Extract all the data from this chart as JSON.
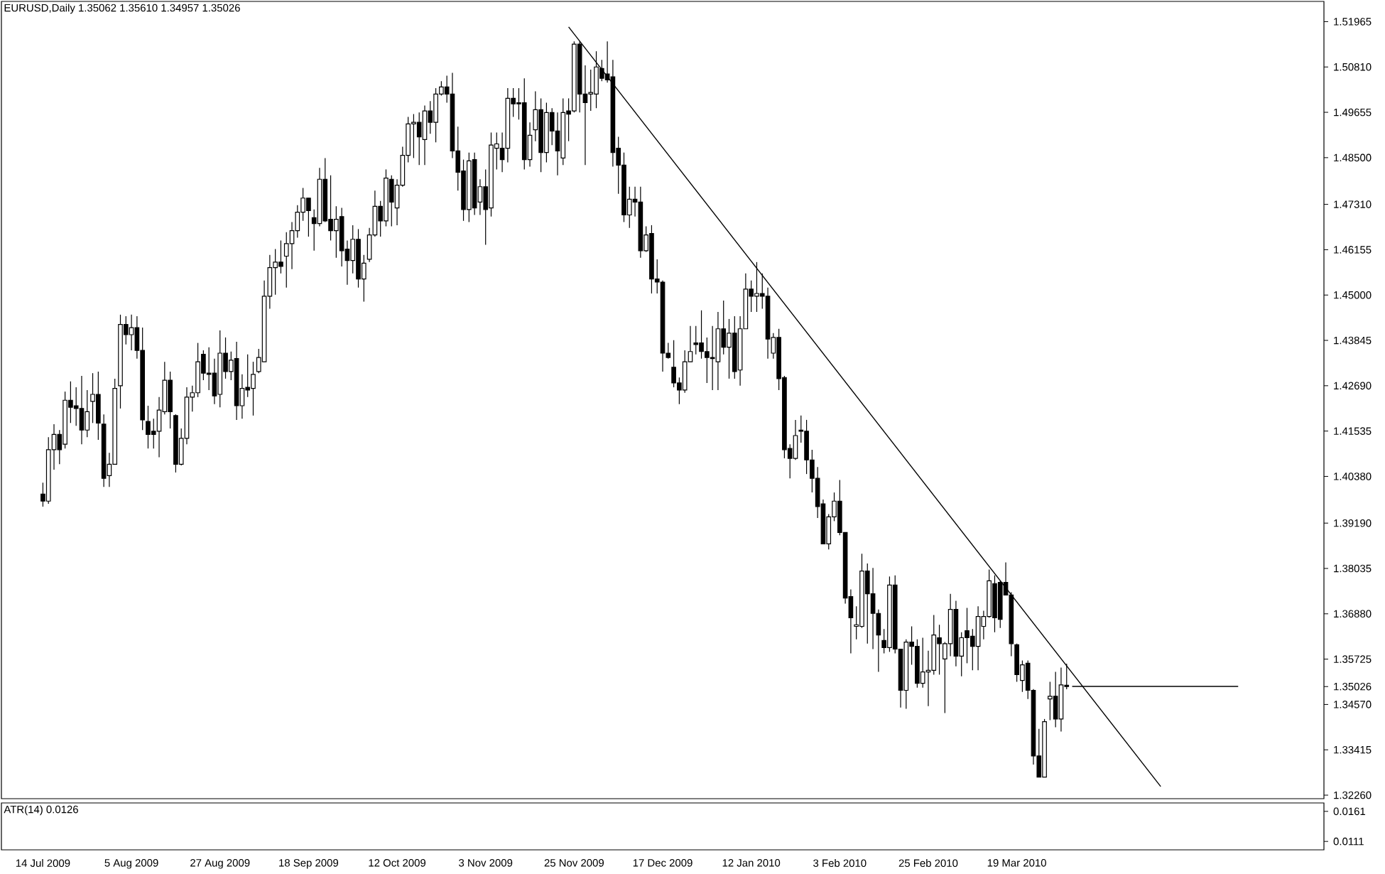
{
  "chart_data": [
    {
      "type": "candlestick",
      "title": "EURUSD,Daily  1.35062 1.35610 1.34957 1.35026",
      "color": "#000000",
      "categories": [
        "14 Jul 2009",
        null,
        null,
        null,
        null,
        null,
        null,
        null,
        null,
        null,
        null,
        null,
        null,
        null,
        null,
        null,
        "5 Aug 2009",
        null,
        null,
        null,
        null,
        null,
        null,
        null,
        null,
        null,
        null,
        null,
        null,
        null,
        null,
        null,
        "27 Aug 2009",
        null,
        null,
        null,
        null,
        null,
        null,
        null,
        null,
        null,
        null,
        null,
        null,
        null,
        null,
        null,
        "18 Sep 2009",
        null,
        null,
        null,
        null,
        null,
        null,
        null,
        null,
        null,
        null,
        null,
        null,
        null,
        null,
        null,
        "12 Oct 2009",
        null,
        null,
        null,
        null,
        null,
        null,
        null,
        null,
        null,
        null,
        null,
        null,
        null,
        null,
        null,
        "3 Nov 2009",
        null,
        null,
        null,
        null,
        null,
        null,
        null,
        null,
        null,
        null,
        null,
        null,
        null,
        null,
        null,
        "25 Nov 2009",
        null,
        null,
        null,
        null,
        null,
        null,
        null,
        null,
        null,
        null,
        null,
        null,
        null,
        null,
        null,
        "17 Dec 2009",
        null,
        null,
        null,
        null,
        null,
        null,
        null,
        null,
        null,
        null,
        null,
        null,
        null,
        null,
        null,
        "12 Jan 2010",
        null,
        null,
        null,
        null,
        null,
        null,
        null,
        null,
        null,
        null,
        null,
        null,
        null,
        null,
        null,
        "3 Feb 2010",
        null,
        null,
        null,
        null,
        null,
        null,
        null,
        null,
        null,
        null,
        null,
        null,
        null,
        null,
        null,
        "25 Feb 2010",
        null,
        null,
        null,
        null,
        null,
        null,
        null,
        null,
        null,
        null,
        null,
        null,
        null,
        null,
        null,
        "19 Mar 2010",
        null,
        null,
        null,
        null,
        null,
        null,
        null,
        null,
        null,
        null,
        null,
        null,
        null,
        null,
        null,
        null,
        null,
        null,
        null,
        null,
        null,
        null,
        null,
        null,
        null,
        null,
        null,
        null,
        null,
        null,
        null,
        null,
        null,
        null,
        null,
        null,
        null,
        null,
        null,
        null,
        null,
        null,
        null,
        null,
        null,
        null,
        null,
        null,
        null,
        null,
        null,
        null,
        null,
        null,
        null
      ],
      "ohlc": [
        [
          1.3993,
          1.4022,
          1.3961,
          1.3975
        ],
        [
          1.3975,
          1.4138,
          1.3968,
          1.4106
        ],
        [
          1.4106,
          1.4171,
          1.4055,
          1.4145
        ],
        [
          1.4145,
          1.4156,
          1.4069,
          1.4106
        ],
        [
          1.412,
          1.4254,
          1.4109,
          1.4232
        ],
        [
          1.4232,
          1.428,
          1.4174,
          1.4214
        ],
        [
          1.4218,
          1.4265,
          1.4167,
          1.4211
        ],
        [
          1.4211,
          1.4294,
          1.412,
          1.4156
        ],
        [
          1.4156,
          1.4258,
          1.4138,
          1.4203
        ],
        [
          1.4229,
          1.4301,
          1.4174,
          1.4247
        ],
        [
          1.4247,
          1.4305,
          1.4131,
          1.4174
        ],
        [
          1.4171,
          1.4196,
          1.4011,
          1.4033
        ],
        [
          1.404,
          1.4098,
          1.4011,
          1.4069
        ],
        [
          1.4069,
          1.4287,
          1.4069,
          1.4262
        ],
        [
          1.4269,
          1.445,
          1.4211,
          1.4425
        ],
        [
          1.4425,
          1.4446,
          1.4374,
          1.4399
        ],
        [
          1.4399,
          1.445,
          1.4359,
          1.4417
        ],
        [
          1.4417,
          1.4446,
          1.4338,
          1.4359
        ],
        [
          1.4359,
          1.4417,
          1.4156,
          1.4182
        ],
        [
          1.4178,
          1.4218,
          1.4109,
          1.4145
        ],
        [
          1.4153,
          1.4185,
          1.4109,
          1.4145
        ],
        [
          1.4153,
          1.424,
          1.4087,
          1.4207
        ],
        [
          1.4203,
          1.433,
          1.4196,
          1.4283
        ],
        [
          1.4283,
          1.4305,
          1.416,
          1.4203
        ],
        [
          1.4193,
          1.4196,
          1.4048,
          1.4069
        ],
        [
          1.4069,
          1.416,
          1.4066,
          1.4135
        ],
        [
          1.4135,
          1.4265,
          1.412,
          1.424
        ],
        [
          1.424,
          1.4269,
          1.4203,
          1.4251
        ],
        [
          1.4251,
          1.4378,
          1.424,
          1.433
        ],
        [
          1.4349,
          1.4359,
          1.4283,
          1.4301
        ],
        [
          1.4301,
          1.4367,
          1.4258,
          1.4298
        ],
        [
          1.4301,
          1.4338,
          1.4222,
          1.4243
        ],
        [
          1.4247,
          1.441,
          1.4214,
          1.4352
        ],
        [
          1.4352,
          1.4392,
          1.4287,
          1.4305
        ],
        [
          1.4305,
          1.4356,
          1.4283,
          1.4334
        ],
        [
          1.4338,
          1.4381,
          1.4182,
          1.4218
        ],
        [
          1.4218,
          1.4298,
          1.4185,
          1.4262
        ],
        [
          1.4265,
          1.4349,
          1.424,
          1.4258
        ],
        [
          1.4262,
          1.433,
          1.4193,
          1.4298
        ],
        [
          1.4305,
          1.4363,
          1.4301,
          1.4341
        ],
        [
          1.433,
          1.4537,
          1.433,
          1.4497
        ],
        [
          1.4497,
          1.4602,
          1.4465,
          1.457
        ],
        [
          1.457,
          1.4617,
          1.4501,
          1.4584
        ],
        [
          1.4584,
          1.4639,
          1.4555,
          1.4573
        ],
        [
          1.4599,
          1.466,
          1.4519,
          1.4631
        ],
        [
          1.4631,
          1.4686,
          1.4566,
          1.4664
        ],
        [
          1.4664,
          1.4729,
          1.4646,
          1.4711
        ],
        [
          1.4711,
          1.4773,
          1.4689,
          1.4747
        ],
        [
          1.4747,
          1.4747,
          1.4649,
          1.4715
        ],
        [
          1.4697,
          1.4718,
          1.4613,
          1.4682
        ],
        [
          1.4682,
          1.4824,
          1.4675,
          1.4795
        ],
        [
          1.4795,
          1.4849,
          1.4686,
          1.4689
        ],
        [
          1.4693,
          1.4805,
          1.4639,
          1.4664
        ],
        [
          1.4664,
          1.4726,
          1.4595,
          1.4693
        ],
        [
          1.47,
          1.4722,
          1.4573,
          1.4613
        ],
        [
          1.4617,
          1.4639,
          1.4526,
          1.4588
        ],
        [
          1.4588,
          1.4678,
          1.4555,
          1.4642
        ],
        [
          1.4642,
          1.4668,
          1.4519,
          1.4541
        ],
        [
          1.4541,
          1.4602,
          1.4483,
          1.4581
        ],
        [
          1.4591,
          1.4671,
          1.4584,
          1.4653
        ],
        [
          1.4653,
          1.4766,
          1.4649,
          1.4726
        ],
        [
          1.4726,
          1.474,
          1.4649,
          1.4689
        ],
        [
          1.4689,
          1.482,
          1.4675,
          1.4798
        ],
        [
          1.4795,
          1.4805,
          1.4675,
          1.4737
        ],
        [
          1.4722,
          1.4795,
          1.4678,
          1.478
        ],
        [
          1.478,
          1.4878,
          1.4776,
          1.4856
        ],
        [
          1.4856,
          1.4954,
          1.4838,
          1.4936
        ],
        [
          1.4936,
          1.4961,
          1.4849,
          1.494
        ],
        [
          1.494,
          1.4965,
          1.4831,
          1.4903
        ],
        [
          1.4896,
          1.4983,
          1.4831,
          1.4969
        ],
        [
          1.4969,
          1.4994,
          1.4911,
          1.494
        ],
        [
          1.494,
          1.5027,
          1.4889,
          1.5012
        ],
        [
          1.5012,
          1.5045,
          1.5008,
          1.503
        ],
        [
          1.503,
          1.5059,
          1.499,
          1.5012
        ],
        [
          1.5012,
          1.5066,
          1.4849,
          1.4867
        ],
        [
          1.4867,
          1.4929,
          1.4766,
          1.4813
        ],
        [
          1.4816,
          1.4845,
          1.4689,
          1.4718
        ],
        [
          1.4718,
          1.4863,
          1.4686,
          1.4842
        ],
        [
          1.4845,
          1.4863,
          1.4704,
          1.4722
        ],
        [
          1.4737,
          1.4795,
          1.4704,
          1.4776
        ],
        [
          1.4776,
          1.482,
          1.4628,
          1.4718
        ],
        [
          1.4722,
          1.4914,
          1.47,
          1.4882
        ],
        [
          1.4874,
          1.4914,
          1.482,
          1.4885
        ],
        [
          1.4874,
          1.4914,
          1.4813,
          1.4845
        ],
        [
          1.4874,
          1.5027,
          1.4838,
          1.5001
        ],
        [
          1.5001,
          1.5027,
          1.4954,
          1.4987
        ],
        [
          1.499,
          1.5027,
          1.4947,
          1.4987
        ],
        [
          1.499,
          1.5052,
          1.482,
          1.4845
        ],
        [
          1.4845,
          1.494,
          1.4827,
          1.4907
        ],
        [
          1.4921,
          1.5019,
          1.4892,
          1.4972
        ],
        [
          1.4972,
          1.5001,
          1.4813,
          1.4863
        ],
        [
          1.4863,
          1.499,
          1.4838,
          1.4965
        ],
        [
          1.4965,
          1.4976,
          1.4882,
          1.4918
        ],
        [
          1.4918,
          1.4965,
          1.4805,
          1.4867
        ],
        [
          1.4849,
          1.5001,
          1.4831,
          1.4965
        ],
        [
          1.4969,
          1.5001,
          1.4892,
          1.4961
        ],
        [
          1.4969,
          1.5146,
          1.4965,
          1.5139
        ],
        [
          1.5139,
          1.5146,
          1.4965,
          1.5012
        ],
        [
          1.5012,
          1.5085,
          1.4831,
          1.499
        ],
        [
          1.5012,
          1.5074,
          1.4969,
          1.5016
        ],
        [
          1.5012,
          1.5121,
          1.4976,
          1.5081
        ],
        [
          1.5077,
          1.5099,
          1.5045,
          1.5052
        ],
        [
          1.5063,
          1.5146,
          1.5041,
          1.5048
        ],
        [
          1.5056,
          1.5099,
          1.4827,
          1.4863
        ],
        [
          1.4874,
          1.4903,
          1.4758,
          1.4831
        ],
        [
          1.4831,
          1.4863,
          1.4686,
          1.4704
        ],
        [
          1.4704,
          1.4776,
          1.4671,
          1.4744
        ],
        [
          1.4744,
          1.4776,
          1.47,
          1.4737
        ],
        [
          1.4737,
          1.4776,
          1.4595,
          1.4613
        ],
        [
          1.4613,
          1.4675,
          1.461,
          1.4653
        ],
        [
          1.4657,
          1.4678,
          1.4504,
          1.4541
        ],
        [
          1.4541,
          1.4591,
          1.4504,
          1.4533
        ],
        [
          1.4533,
          1.4537,
          1.4305,
          1.4352
        ],
        [
          1.4352,
          1.4378,
          1.4338,
          1.4341
        ],
        [
          1.4316,
          1.4385,
          1.4265,
          1.4276
        ],
        [
          1.4276,
          1.429,
          1.4222,
          1.4258
        ],
        [
          1.4258,
          1.4359,
          1.4251,
          1.433
        ],
        [
          1.433,
          1.4421,
          1.433,
          1.4356
        ],
        [
          1.4378,
          1.4421,
          1.4349,
          1.4374
        ],
        [
          1.4378,
          1.4461,
          1.4338,
          1.4356
        ],
        [
          1.4356,
          1.4392,
          1.4276,
          1.4341
        ],
        [
          1.4341,
          1.4421,
          1.4258,
          1.4338
        ],
        [
          1.433,
          1.4457,
          1.4258,
          1.4414
        ],
        [
          1.4414,
          1.4486,
          1.4349,
          1.4367
        ],
        [
          1.4367,
          1.4439,
          1.4287,
          1.4403
        ],
        [
          1.4403,
          1.4446,
          1.4287,
          1.4305
        ],
        [
          1.4309,
          1.4446,
          1.4269,
          1.4414
        ],
        [
          1.4414,
          1.4555,
          1.4414,
          1.4515
        ],
        [
          1.4515,
          1.4537,
          1.4457,
          1.4497
        ],
        [
          1.4497,
          1.4584,
          1.4457,
          1.4504
        ],
        [
          1.4504,
          1.4555,
          1.4465,
          1.4497
        ],
        [
          1.4497,
          1.4519,
          1.4338,
          1.4388
        ],
        [
          1.4352,
          1.4403,
          1.4338,
          1.4392
        ],
        [
          1.4392,
          1.4414,
          1.4258,
          1.4287
        ],
        [
          1.429,
          1.4294,
          1.4084,
          1.4106
        ],
        [
          1.4109,
          1.412,
          1.4033,
          1.4084
        ],
        [
          1.4084,
          1.4182,
          1.408,
          1.4142
        ],
        [
          1.4156,
          1.4193,
          1.4124,
          1.4153
        ],
        [
          1.4153,
          1.4182,
          1.4044,
          1.408
        ],
        [
          1.408,
          1.4106,
          1.3997,
          1.4033
        ],
        [
          1.4033,
          1.4062,
          1.3932,
          1.3961
        ],
        [
          1.3968,
          1.3979,
          1.3866,
          1.3866
        ],
        [
          1.3866,
          1.3942,
          1.3852,
          1.3935
        ],
        [
          1.3935,
          1.3997,
          1.3924,
          1.3975
        ],
        [
          1.3975,
          1.4029,
          1.3888,
          1.3895
        ],
        [
          1.3895,
          1.3895,
          1.3714,
          1.3728
        ],
        [
          1.3732,
          1.375,
          1.3587,
          1.3678
        ],
        [
          1.3656,
          1.3707,
          1.3623,
          1.366
        ],
        [
          1.3656,
          1.3841,
          1.3652,
          1.3797
        ],
        [
          1.3797,
          1.3816,
          1.3612,
          1.3739
        ],
        [
          1.3739,
          1.3805,
          1.3598,
          1.3689
        ],
        [
          1.3689,
          1.3699,
          1.354,
          1.3634
        ],
        [
          1.362,
          1.3649,
          1.3587,
          1.3602
        ],
        [
          1.3602,
          1.3783,
          1.3591,
          1.3761
        ],
        [
          1.3761,
          1.3786,
          1.3587,
          1.3598
        ],
        [
          1.3598,
          1.3598,
          1.3449,
          1.3493
        ],
        [
          1.3493,
          1.3623,
          1.3446,
          1.3616
        ],
        [
          1.3616,
          1.3656,
          1.3558,
          1.3605
        ],
        [
          1.3605,
          1.3623,
          1.35,
          1.3511
        ],
        [
          1.3511,
          1.3627,
          1.35,
          1.354
        ],
        [
          1.354,
          1.3594,
          1.3453,
          1.3544
        ],
        [
          1.3544,
          1.3685,
          1.3533,
          1.3634
        ],
        [
          1.3627,
          1.366,
          1.3533,
          1.3612
        ],
        [
          1.3573,
          1.3616,
          1.3435,
          1.3612
        ],
        [
          1.3612,
          1.3739,
          1.358,
          1.3699
        ],
        [
          1.3699,
          1.3721,
          1.3554,
          1.358
        ],
        [
          1.358,
          1.3641,
          1.3529,
          1.3627
        ],
        [
          1.3645,
          1.3703,
          1.3562,
          1.3627
        ],
        [
          1.3631,
          1.3649,
          1.3544,
          1.3605
        ],
        [
          1.3605,
          1.3707,
          1.3544,
          1.3681
        ],
        [
          1.3656,
          1.3696,
          1.3623,
          1.3681
        ],
        [
          1.3681,
          1.3801,
          1.3678,
          1.3772
        ],
        [
          1.3765,
          1.3786,
          1.3641,
          1.3678
        ],
        [
          1.3768,
          1.3772,
          1.3652,
          1.3674
        ],
        [
          1.3768,
          1.3819,
          1.3736,
          1.3736
        ],
        [
          1.3736,
          1.3743,
          1.358,
          1.3612
        ],
        [
          1.3609,
          1.3612,
          1.3515,
          1.3533
        ],
        [
          1.3518,
          1.3569,
          1.3489,
          1.3558
        ],
        [
          1.3562,
          1.3569,
          1.3471,
          1.3493
        ],
        [
          1.3493,
          1.3496,
          1.3304,
          1.3326
        ],
        [
          1.3326,
          1.3395,
          1.3272,
          1.3272
        ],
        [
          1.3272,
          1.342,
          1.3272,
          1.3413
        ],
        [
          1.3471,
          1.3515,
          1.3417,
          1.3478
        ],
        [
          1.3478,
          1.354,
          1.3399,
          1.342
        ],
        [
          1.342,
          1.3551,
          1.3388,
          1.3507
        ],
        [
          1.35062,
          1.3561,
          1.34957,
          1.35026
        ],
        null,
        null,
        null,
        null,
        null,
        null,
        null,
        null,
        null,
        null,
        null,
        null,
        null,
        null,
        null,
        null,
        null,
        null,
        null,
        null,
        null,
        null,
        null,
        null,
        null,
        null,
        null,
        null,
        null,
        null,
        null,
        null,
        null,
        null,
        null,
        null,
        null,
        null,
        null,
        null,
        null,
        null,
        null,
        null,
        null,
        null
      ],
      "series": [
        {
          "type": "line",
          "color": "#000000",
          "values": [
            null,
            null,
            null,
            null,
            null,
            null,
            null,
            null,
            null,
            null,
            null,
            null,
            null,
            null,
            null,
            null,
            null,
            null,
            null,
            null,
            null,
            null,
            null,
            null,
            null,
            null,
            null,
            null,
            null,
            null,
            null,
            null,
            null,
            null,
            null,
            null,
            null,
            null,
            null,
            null,
            null,
            null,
            null,
            null,
            null,
            null,
            null,
            null,
            null,
            null,
            null,
            null,
            null,
            null,
            null,
            null,
            null,
            null,
            null,
            null,
            null,
            null,
            null,
            null,
            null,
            null,
            null,
            null,
            null,
            null,
            null,
            null,
            null,
            null,
            null,
            null,
            null,
            null,
            null,
            null,
            null,
            null,
            null,
            null,
            null,
            null,
            null,
            null,
            null,
            null,
            null,
            null,
            null,
            null,
            null,
            1.5183,
            null,
            null,
            null,
            null,
            null,
            null,
            null,
            null,
            null,
            null,
            null,
            null,
            null,
            null,
            null,
            null,
            null,
            null,
            null,
            null,
            null,
            null,
            null,
            null,
            null,
            null,
            null,
            null,
            null,
            null,
            null,
            null,
            null,
            null,
            null,
            null,
            null,
            null,
            null,
            null,
            null,
            null,
            null,
            null,
            null,
            null,
            null,
            null,
            null,
            null,
            null,
            null,
            null,
            null,
            null,
            null,
            null,
            null,
            null,
            null,
            null,
            null,
            null,
            null,
            null,
            null,
            null,
            null,
            null,
            null,
            null,
            null,
            null,
            null,
            null,
            null,
            null,
            null,
            null,
            null,
            null,
            null,
            null,
            null,
            null,
            null,
            null,
            null,
            null,
            null,
            null,
            null,
            null,
            null,
            null,
            null,
            null,
            null,
            null,
            null,
            null,
            null,
            null,
            null,
            null,
            null,
            1.3248,
            null,
            null,
            null,
            null,
            null,
            null,
            null,
            null,
            null,
            null,
            null,
            null,
            null,
            null,
            null,
            null,
            null,
            null,
            null,
            null,
            null,
            null,
            null,
            null,
            null,
            null,
            null,
            null,
            null
          ]
        },
        {
          "type": "line",
          "color": "#000000",
          "values": [
            null,
            null,
            null,
            null,
            null,
            null,
            null,
            null,
            null,
            null,
            null,
            null,
            null,
            null,
            null,
            null,
            null,
            null,
            null,
            null,
            null,
            null,
            null,
            null,
            null,
            null,
            null,
            null,
            null,
            null,
            null,
            null,
            null,
            null,
            null,
            null,
            null,
            null,
            null,
            null,
            null,
            null,
            null,
            null,
            null,
            null,
            null,
            null,
            null,
            null,
            null,
            null,
            null,
            null,
            null,
            null,
            null,
            null,
            null,
            null,
            null,
            null,
            null,
            null,
            null,
            null,
            null,
            null,
            null,
            null,
            null,
            null,
            null,
            null,
            null,
            null,
            null,
            null,
            null,
            null,
            null,
            null,
            null,
            null,
            null,
            null,
            null,
            null,
            null,
            null,
            null,
            null,
            null,
            null,
            null,
            null,
            null,
            null,
            null,
            null,
            null,
            null,
            null,
            null,
            null,
            null,
            null,
            null,
            null,
            null,
            null,
            null,
            null,
            null,
            null,
            null,
            null,
            null,
            null,
            null,
            null,
            null,
            null,
            null,
            null,
            null,
            null,
            null,
            null,
            null,
            null,
            null,
            null,
            null,
            null,
            null,
            null,
            null,
            null,
            null,
            null,
            null,
            null,
            null,
            null,
            null,
            null,
            null,
            null,
            null,
            null,
            null,
            null,
            null,
            null,
            null,
            null,
            null,
            null,
            null,
            null,
            null,
            null,
            null,
            null,
            null,
            null,
            null,
            null,
            null,
            null,
            null,
            null,
            null,
            null,
            null,
            null,
            null,
            null,
            null,
            null,
            null,
            null,
            null,
            null,
            null,
            1.3503,
            null,
            null,
            null,
            null,
            null,
            null,
            null,
            null,
            null,
            null,
            null,
            null,
            null,
            null,
            null,
            null,
            null,
            null,
            null,
            null,
            null,
            null,
            null,
            null,
            null,
            null,
            null,
            null,
            null,
            1.3503,
            null,
            null,
            null,
            null,
            null,
            null,
            null,
            null,
            null,
            null,
            null,
            null,
            null,
            null,
            null
          ]
        }
      ],
      "ylim": [
        1.3217,
        1.5248
      ],
      "yticks": [
        1.51965,
        {
          "value": 1.5081,
          "label": "1.50810"
        },
        1.49655,
        {
          "value": 1.485,
          "label": "1.48500"
        },
        {
          "value": 1.4731,
          "label": "1.47310"
        },
        1.46155,
        {
          "value": 1.45,
          "label": "1.45000"
        },
        1.43845,
        {
          "value": 1.4269,
          "label": "1.42690"
        },
        1.41535,
        {
          "value": 1.4038,
          "label": "1.40380"
        },
        {
          "value": 1.3919,
          "label": "1.39190"
        },
        1.38035,
        {
          "value": 1.3688,
          "label": "1.36880"
        },
        1.35725,
        1.35026,
        {
          "value": 1.3457,
          "label": "1.34570"
        },
        1.33415,
        {
          "value": 1.3226,
          "label": "1.32260"
        }
      ]
    },
    {
      "type": "line",
      "title": "ATR(14) 0.0126",
      "categories": [
        null,
        null,
        null,
        null,
        null,
        null,
        null,
        null,
        null,
        null,
        null,
        null,
        null,
        null,
        null,
        null,
        null,
        null,
        null,
        null,
        null,
        null,
        null,
        null,
        null,
        null,
        null,
        null,
        null,
        null,
        null,
        null,
        null,
        null,
        null,
        null,
        null,
        null,
        null,
        null,
        null,
        null,
        null,
        null,
        null,
        null,
        null,
        null,
        null,
        null,
        null,
        null,
        null,
        null,
        null,
        null,
        null,
        null,
        null,
        null,
        null,
        null,
        null,
        null,
        null,
        null,
        null,
        null,
        null,
        null,
        null,
        null,
        null,
        null,
        null,
        null,
        null,
        null,
        null,
        null,
        null,
        null,
        null,
        null,
        null,
        null,
        null,
        null,
        null,
        null,
        null,
        null,
        null,
        null,
        null,
        null,
        null,
        null,
        null,
        null,
        null,
        null,
        null,
        null,
        null,
        null,
        null,
        null,
        null,
        null,
        null,
        null,
        null,
        null,
        null,
        null,
        null,
        null,
        null,
        null,
        null,
        null,
        null,
        null,
        null,
        null,
        null,
        null,
        null,
        null,
        null,
        null,
        null,
        null,
        null,
        null,
        null,
        null,
        null,
        null,
        null,
        null,
        null,
        null,
        null,
        null,
        null,
        null,
        null,
        null,
        null,
        null,
        null,
        null,
        null,
        null,
        null,
        null,
        null,
        null,
        null,
        null,
        null,
        null,
        null,
        null,
        null,
        null,
        null,
        null,
        null,
        null,
        null,
        null,
        null,
        null,
        null,
        null,
        null,
        null,
        null,
        null,
        null,
        null,
        null,
        null,
        null,
        null,
        null,
        null,
        null,
        null,
        null,
        null,
        null,
        null,
        null,
        null,
        null,
        null,
        null,
        null,
        null,
        null,
        null,
        null,
        null,
        null,
        null,
        null,
        null,
        null,
        null,
        null,
        null,
        null,
        null,
        null,
        null,
        null,
        null,
        null,
        null,
        null,
        null,
        null,
        null,
        null,
        null,
        null,
        null,
        null
      ],
      "values": [
        null,
        null,
        null,
        null,
        null,
        null,
        null,
        null,
        null,
        null,
        null,
        null,
        null,
        null,
        null,
        null,
        null,
        null,
        null,
        null,
        null,
        null,
        null,
        null,
        null,
        null,
        null,
        null,
        null,
        null,
        null,
        null,
        null,
        null,
        null,
        null,
        null,
        null,
        null,
        null,
        null,
        null,
        null,
        null,
        null,
        null,
        null,
        null,
        null,
        null,
        null,
        null,
        null,
        null,
        null,
        null,
        null,
        null,
        null,
        null,
        null,
        null,
        null,
        null,
        null,
        null,
        null,
        null,
        null,
        null,
        null,
        null,
        null,
        null,
        null,
        null,
        null,
        null,
        null,
        null,
        null,
        null,
        null,
        null,
        null,
        null,
        null,
        null,
        null,
        null,
        null,
        null,
        null,
        null,
        null,
        null,
        null,
        null,
        null,
        null,
        null,
        null,
        null,
        null,
        null,
        null,
        null,
        null,
        null,
        null,
        null,
        null,
        null,
        null,
        null,
        null,
        null,
        null,
        null,
        null,
        null,
        null,
        null,
        null,
        null,
        null,
        null,
        null,
        null,
        null,
        null,
        null,
        null,
        null,
        null,
        null,
        null,
        null,
        null,
        null,
        null,
        null,
        null,
        null,
        null,
        null,
        null,
        null,
        null,
        null,
        null,
        null,
        null,
        null,
        null,
        null,
        null,
        null,
        null,
        null,
        null,
        null,
        null,
        null,
        null,
        null,
        null,
        null,
        null,
        null,
        null,
        null,
        null,
        null,
        null,
        null,
        null,
        null,
        null,
        null,
        null,
        null,
        null,
        null,
        null,
        null,
        null,
        null,
        null,
        null,
        null,
        null,
        null,
        null,
        null,
        null,
        null,
        null,
        null,
        null,
        null,
        null,
        null,
        null,
        null,
        null,
        null,
        null,
        null,
        null,
        null,
        null,
        null,
        null,
        null,
        null,
        null,
        null,
        null,
        null,
        null,
        null,
        null,
        null,
        null,
        null,
        null,
        null,
        null,
        null,
        null,
        null
      ],
      "ylim": [
        0.0097,
        0.0175
      ],
      "yticks": [
        0.0111,
        0.0161
      ]
    }
  ]
}
